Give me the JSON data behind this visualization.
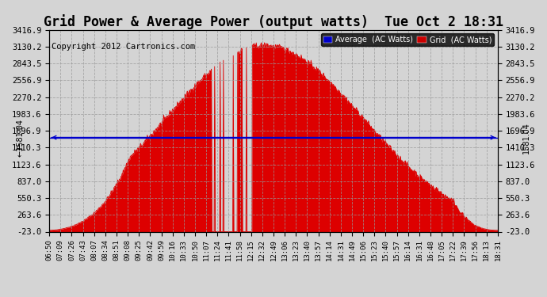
{
  "title": "Grid Power & Average Power (output watts)  Tue Oct 2 18:31",
  "copyright": "Copyright 2012 Cartronics.com",
  "legend_entries": [
    {
      "label": "Average  (AC Watts)",
      "facecolor": "#0000cc"
    },
    {
      "label": "Grid  (AC Watts)",
      "facecolor": "#cc0000"
    }
  ],
  "yticks": [
    -23.0,
    263.6,
    550.3,
    837.0,
    1123.6,
    1410.3,
    1696.9,
    1983.6,
    2270.2,
    2556.9,
    2843.5,
    3130.2,
    3416.9
  ],
  "average_value": 1581.04,
  "ymin": -23.0,
  "ymax": 3416.9,
  "fill_color": "#dd0000",
  "average_line_color": "#0000cc",
  "background_color": "#d4d4d4",
  "grid_color": "#999999",
  "title_fontsize": 12,
  "copyright_fontsize": 7.5,
  "tick_fontsize": 7.5,
  "xtick_labels": [
    "06:50",
    "07:09",
    "07:26",
    "07:43",
    "08:07",
    "08:34",
    "08:51",
    "09:08",
    "09:25",
    "09:42",
    "09:59",
    "10:16",
    "10:33",
    "10:50",
    "11:07",
    "11:24",
    "11:41",
    "11:58",
    "12:15",
    "12:32",
    "12:49",
    "13:06",
    "13:23",
    "13:40",
    "13:57",
    "14:14",
    "14:31",
    "14:49",
    "15:06",
    "15:23",
    "15:40",
    "15:57",
    "16:14",
    "16:31",
    "16:48",
    "17:05",
    "17:22",
    "17:39",
    "17:56",
    "18:13",
    "18:31"
  ]
}
